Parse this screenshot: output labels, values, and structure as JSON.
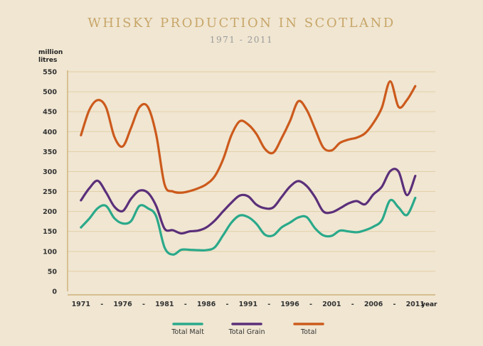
{
  "chart_data": {
    "type": "line",
    "title": "WHISKY PRODUCTION IN SCOTLAND",
    "subtitle": "1971 - 2011",
    "ylabel": [
      "million",
      "litres"
    ],
    "xlabel": "year",
    "ylim": [
      0,
      550
    ],
    "yticks": [
      0,
      50,
      100,
      150,
      200,
      250,
      300,
      350,
      400,
      450,
      500,
      550
    ],
    "xticks": [
      {
        "x": 1971,
        "label": "1971"
      },
      {
        "x": 1973.5,
        "label": "-"
      },
      {
        "x": 1976,
        "label": "1976"
      },
      {
        "x": 1978.5,
        "label": "-"
      },
      {
        "x": 1981,
        "label": "1981"
      },
      {
        "x": 1983.5,
        "label": "-"
      },
      {
        "x": 1986,
        "label": "1986"
      },
      {
        "x": 1988.5,
        "label": "-"
      },
      {
        "x": 1991,
        "label": "1991"
      },
      {
        "x": 1993.5,
        "label": "-"
      },
      {
        "x": 1996,
        "label": "1996"
      },
      {
        "x": 1998.5,
        "label": "-"
      },
      {
        "x": 2001,
        "label": "2001"
      },
      {
        "x": 2003.5,
        "label": "-"
      },
      {
        "x": 2006,
        "label": "2006"
      },
      {
        "x": 2008.5,
        "label": "-"
      },
      {
        "x": 2011,
        "label": "2011"
      }
    ],
    "xlim": [
      1969.4,
      2013.4
    ],
    "grid": true,
    "legend_position": "bottom",
    "x": [
      1971,
      1972,
      1973,
      1974,
      1975,
      1976,
      1977,
      1978,
      1979,
      1980,
      1981,
      1982,
      1983,
      1984,
      1985,
      1986,
      1987,
      1988,
      1989,
      1990,
      1991,
      1992,
      1993,
      1994,
      1995,
      1996,
      1997,
      1998,
      1999,
      2000,
      2001,
      2002,
      2003,
      2004,
      2005,
      2006,
      2007,
      2008,
      2009,
      2010,
      2011
    ],
    "series": [
      {
        "name": "Total Malt",
        "color": "#2aa98a",
        "values": [
          160,
          182,
          208,
          214,
          183,
          170,
          176,
          214,
          208,
          188,
          110,
          92,
          104,
          104,
          103,
          103,
          110,
          140,
          172,
          190,
          186,
          169,
          142,
          140,
          160,
          172,
          185,
          186,
          158,
          140,
          139,
          152,
          150,
          148,
          153,
          162,
          178,
          228,
          210,
          191,
          234
        ]
      },
      {
        "name": "Total Grain",
        "color": "#5b2f7a",
        "values": [
          228,
          258,
          277,
          248,
          212,
          201,
          232,
          252,
          247,
          214,
          157,
          153,
          145,
          150,
          152,
          160,
          177,
          200,
          222,
          240,
          238,
          217,
          208,
          210,
          236,
          262,
          276,
          264,
          236,
          200,
          198,
          208,
          220,
          226,
          218,
          243,
          262,
          301,
          300,
          241,
          289
        ]
      },
      {
        "name": "Total",
        "color": "#cc5a1c",
        "values": [
          391,
          454,
          479,
          461,
          387,
          363,
          410,
          461,
          462,
          393,
          268,
          250,
          247,
          251,
          258,
          268,
          288,
          330,
          391,
          426,
          418,
          394,
          357,
          347,
          383,
          426,
          476,
          455,
          407,
          360,
          353,
          372,
          380,
          385,
          396,
          422,
          460,
          526,
          462,
          479,
          514
        ]
      }
    ]
  }
}
